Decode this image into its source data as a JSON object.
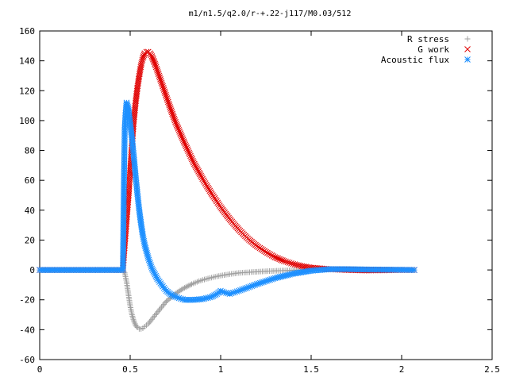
{
  "chart_data": {
    "type": "scatter",
    "title": "m1/n1.5/q2.0/r-+.22-j117/M0.03/512",
    "xlabel": "",
    "ylabel": "",
    "xlim": [
      0,
      2.5
    ],
    "ylim": [
      -60,
      160
    ],
    "xticks": [
      0,
      0.5,
      1,
      1.5,
      2,
      2.5
    ],
    "xtick_labels": [
      "0",
      "0.5",
      "1",
      "1.5",
      "2",
      "2.5"
    ],
    "yticks": [
      -60,
      -40,
      -20,
      0,
      20,
      40,
      60,
      80,
      100,
      120,
      140,
      160
    ],
    "ytick_labels": [
      "-60",
      "-40",
      "-20",
      "0",
      "20",
      "40",
      "60",
      "80",
      "100",
      "120",
      "140",
      "160"
    ],
    "grid": false,
    "legend_position": "top-right",
    "series": [
      {
        "name": "R stress",
        "marker": "plus",
        "color": "#a0a0a0",
        "x": [
          0.0,
          0.2,
          0.4,
          0.46,
          0.47,
          0.48,
          0.49,
          0.5,
          0.51,
          0.52,
          0.53,
          0.54,
          0.55,
          0.56,
          0.57,
          0.58,
          0.59,
          0.6,
          0.62,
          0.64,
          0.66,
          0.68,
          0.7,
          0.73,
          0.76,
          0.8,
          0.84,
          0.88,
          0.92,
          0.96,
          1.0,
          1.05,
          1.1,
          1.2,
          1.3,
          1.4,
          1.5,
          1.6,
          1.7,
          1.8,
          1.9,
          2.0,
          2.07
        ],
        "y": [
          0,
          0,
          0,
          0,
          -2,
          -8,
          -16,
          -24,
          -30,
          -34,
          -37,
          -38.5,
          -39.5,
          -39.5,
          -39,
          -38,
          -37,
          -36,
          -33,
          -30,
          -27,
          -24,
          -21,
          -18,
          -15,
          -12,
          -9.5,
          -7.5,
          -6,
          -4.8,
          -3.8,
          -2.8,
          -2,
          -1.2,
          -0.6,
          -0.2,
          0.3,
          0.6,
          0.6,
          0.4,
          0.2,
          0.1,
          0
        ]
      },
      {
        "name": "G work",
        "marker": "cross",
        "color": "#e00000",
        "x": [
          0.0,
          0.2,
          0.4,
          0.46,
          0.465,
          0.47,
          0.475,
          0.48,
          0.49,
          0.5,
          0.51,
          0.52,
          0.53,
          0.54,
          0.55,
          0.56,
          0.57,
          0.58,
          0.59,
          0.6,
          0.61,
          0.62,
          0.64,
          0.66,
          0.68,
          0.7,
          0.72,
          0.75,
          0.8,
          0.85,
          0.9,
          0.95,
          1.0,
          1.05,
          1.1,
          1.15,
          1.2,
          1.25,
          1.3,
          1.35,
          1.4,
          1.45,
          1.5,
          1.6,
          1.7,
          1.8,
          1.9,
          2.0,
          2.07
        ],
        "y": [
          0,
          0,
          0,
          0,
          9,
          17,
          25,
          33,
          48,
          66,
          84,
          100,
          112,
          122,
          130,
          137,
          142,
          145,
          146,
          146,
          145,
          143,
          137,
          130,
          123,
          116,
          109,
          99,
          85,
          72,
          61,
          51,
          42,
          34,
          27,
          21,
          16,
          12,
          8.5,
          6,
          4,
          2.5,
          1.5,
          0.5,
          0,
          -0.3,
          -0.2,
          0,
          0
        ]
      },
      {
        "name": "Acoustic flux",
        "marker": "star",
        "color": "#1e90ff",
        "x": [
          0.0,
          0.2,
          0.4,
          0.46,
          0.465,
          0.47,
          0.475,
          0.48,
          0.49,
          0.5,
          0.51,
          0.52,
          0.53,
          0.54,
          0.55,
          0.56,
          0.57,
          0.58,
          0.6,
          0.62,
          0.65,
          0.68,
          0.7,
          0.72,
          0.75,
          0.8,
          0.85,
          0.9,
          0.95,
          0.98,
          1.0,
          1.02,
          1.05,
          1.1,
          1.2,
          1.3,
          1.4,
          1.5,
          1.6,
          1.7,
          1.8,
          1.9,
          2.0,
          2.07
        ],
        "y": [
          0,
          0,
          0,
          0,
          55,
          95,
          105,
          112,
          108,
          98,
          88,
          76,
          63,
          51,
          40,
          31,
          23,
          17,
          8,
          1,
          -6,
          -11,
          -14,
          -16,
          -18,
          -20,
          -20,
          -19.5,
          -18,
          -16,
          -14,
          -15,
          -16,
          -14,
          -9.5,
          -5.5,
          -2.5,
          -0.5,
          0.5,
          0.5,
          0.3,
          0.2,
          0.1,
          0
        ]
      }
    ]
  }
}
